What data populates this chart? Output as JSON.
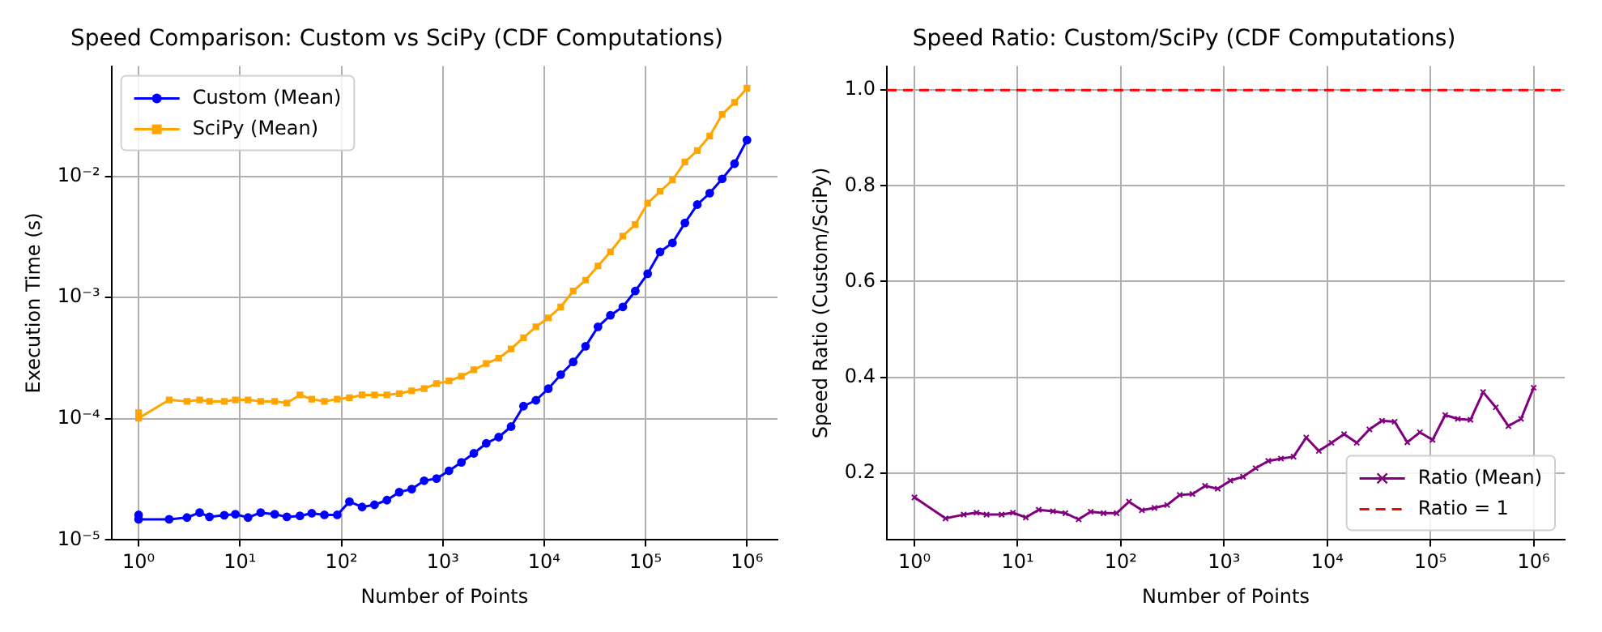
{
  "chart_data": [
    {
      "type": "line",
      "title": "Speed Comparison: Custom vs SciPy (CDF Computations)",
      "xlabel": "Number of Points",
      "ylabel": "Execution Time (s)",
      "log": "xy",
      "grid": true,
      "legend": "top left",
      "xlim": [
        0.54,
        2000000
      ],
      "ylim": [
        1e-05,
        0.081
      ],
      "xticks": [
        {
          "value": 1,
          "label": "10⁰"
        },
        {
          "value": 10,
          "label": "10¹"
        },
        {
          "value": 100,
          "label": "10²"
        },
        {
          "value": 1000,
          "label": "10³"
        },
        {
          "value": 10000,
          "label": "10⁴"
        },
        {
          "value": 100000,
          "label": "10⁵"
        },
        {
          "value": 1000000,
          "label": "10⁶"
        }
      ],
      "yticks": [
        {
          "value": 1e-05,
          "label": "10⁻⁵"
        },
        {
          "value": 0.0001,
          "label": "10⁻⁴"
        },
        {
          "value": 0.001,
          "label": "10⁻³"
        },
        {
          "value": 0.01,
          "label": "10⁻²"
        }
      ],
      "series": [
        {
          "name": "Custom (Mean)",
          "color": "#0000ff",
          "marker": "circle",
          "x": [
            1,
            1,
            2,
            3,
            4,
            5,
            7,
            9,
            12,
            16,
            22,
            29,
            39,
            51,
            68,
            91,
            120,
            160,
            212,
            281,
            372,
            494,
            655,
            868,
            1151,
            1526,
            2024,
            2682,
            3556,
            4714,
            6250,
            8286,
            10985,
            14563,
            19306,
            25595,
            33932,
            44984,
            59636,
            79060,
            104811,
            138949,
            184206,
            244205,
            323745,
            429193,
            568987,
            754312,
            1000000
          ],
          "values": [
            1.61e-05,
            1.48e-05,
            1.48e-05,
            1.53e-05,
            1.68e-05,
            1.55e-05,
            1.6e-05,
            1.63e-05,
            1.53e-05,
            1.68e-05,
            1.63e-05,
            1.55e-05,
            1.58e-05,
            1.66e-05,
            1.61e-05,
            1.61e-05,
            2.07e-05,
            1.87e-05,
            1.95e-05,
            2.13e-05,
            2.48e-05,
            2.63e-05,
            3.08e-05,
            3.21e-05,
            3.72e-05,
            4.37e-05,
            5.18e-05,
            6.26e-05,
            7.05e-05,
            8.61e-05,
            0.000127,
            0.000142,
            0.000177,
            0.000231,
            0.000294,
            0.000396,
            0.000573,
            0.000713,
            0.000836,
            0.00113,
            0.00157,
            0.00238,
            0.00282,
            0.00412,
            0.00584,
            0.00726,
            0.00951,
            0.0127,
            0.0199
          ]
        },
        {
          "name": "SciPy (Mean)",
          "color": "#ffa500",
          "marker": "square",
          "x": [
            1,
            1,
            2,
            3,
            4,
            5,
            7,
            9,
            12,
            16,
            22,
            29,
            39,
            51,
            68,
            91,
            120,
            160,
            212,
            281,
            372,
            494,
            655,
            868,
            1151,
            1526,
            2024,
            2682,
            3556,
            4714,
            6250,
            8286,
            10985,
            14563,
            19306,
            25595,
            33932,
            44984,
            59636,
            79060,
            104811,
            138949,
            184206,
            244205,
            323745,
            429193,
            568987,
            754312,
            1000000
          ],
          "values": [
            0.000112,
            0.000101,
            0.000143,
            0.000139,
            0.000143,
            0.000139,
            0.000139,
            0.000143,
            0.000143,
            0.000139,
            0.000139,
            0.000135,
            0.000157,
            0.000145,
            0.000139,
            0.000145,
            0.000149,
            0.000157,
            0.000157,
            0.000157,
            0.000161,
            0.00017,
            0.000177,
            0.000195,
            0.000205,
            0.000224,
            0.000253,
            0.000285,
            0.000315,
            0.000377,
            0.000465,
            0.000573,
            0.000678,
            0.000836,
            0.00113,
            0.00139,
            0.00182,
            0.00238,
            0.00321,
            0.004,
            0.006,
            0.0075,
            0.0093,
            0.0131,
            0.0163,
            0.0215,
            0.0324,
            0.0407,
            0.0533
          ]
        }
      ]
    },
    {
      "type": "line",
      "title": "Speed Ratio: Custom/SciPy (CDF Computations)",
      "xlabel": "Number of Points",
      "ylabel": "Speed Ratio (Custom/SciPy)",
      "log": "x",
      "grid": true,
      "legend": "bottom right",
      "xlim": [
        0.54,
        2000000
      ],
      "ylim": [
        0.06,
        1.05
      ],
      "xticks": [
        {
          "value": 1,
          "label": "10⁰"
        },
        {
          "value": 10,
          "label": "10¹"
        },
        {
          "value": 100,
          "label": "10²"
        },
        {
          "value": 1000,
          "label": "10³"
        },
        {
          "value": 10000,
          "label": "10⁴"
        },
        {
          "value": 100000,
          "label": "10⁵"
        },
        {
          "value": 1000000,
          "label": "10⁶"
        }
      ],
      "yticks": [
        0.2,
        0.4,
        0.6,
        0.8,
        {
          "value": 1,
          "label": "1.0"
        }
      ],
      "ref_lines": [
        {
          "axis": "y",
          "value": 1,
          "label": "Ratio = 1",
          "color": "#ff0000",
          "line_style": "dashed"
        }
      ],
      "series": [
        {
          "name": "Ratio (Mean)",
          "color": "#800080",
          "marker": "cross",
          "x": [
            1,
            2,
            3,
            4,
            5,
            7,
            9,
            12,
            16,
            22,
            29,
            39,
            51,
            68,
            91,
            120,
            160,
            212,
            281,
            372,
            494,
            655,
            868,
            1151,
            1526,
            2024,
            2682,
            3556,
            4714,
            6250,
            8286,
            10985,
            14563,
            19306,
            25595,
            33932,
            44984,
            59636,
            79060,
            104811,
            138949,
            184206,
            244205,
            323745,
            429193,
            568987,
            754312,
            1000000
          ],
          "values": [
            0.149,
            0.105,
            0.113,
            0.117,
            0.113,
            0.113,
            0.117,
            0.107,
            0.123,
            0.12,
            0.116,
            0.103,
            0.119,
            0.116,
            0.116,
            0.14,
            0.122,
            0.127,
            0.133,
            0.154,
            0.156,
            0.173,
            0.167,
            0.184,
            0.192,
            0.21,
            0.225,
            0.23,
            0.234,
            0.274,
            0.246,
            0.263,
            0.281,
            0.263,
            0.291,
            0.309,
            0.307,
            0.264,
            0.285,
            0.269,
            0.321,
            0.313,
            0.311,
            0.369,
            0.337,
            0.298,
            0.313,
            0.378
          ]
        }
      ]
    }
  ]
}
